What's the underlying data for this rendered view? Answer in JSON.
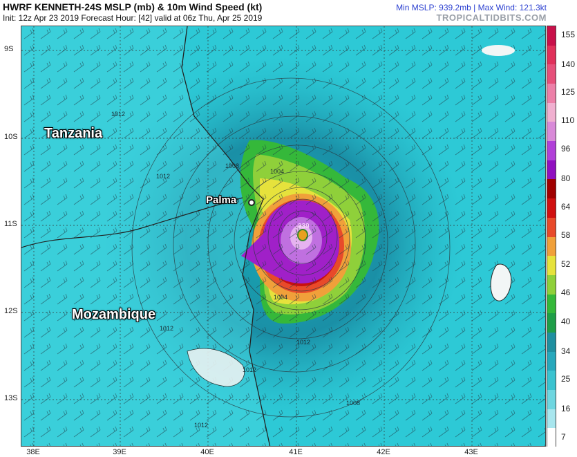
{
  "header": {
    "title": "HWRF KENNETH-24S MSLP (mb) & 10m Wind Speed (kt)",
    "subtitle": "Init: 12z Apr 23 2019   Forecast Hour: [42]   valid at 06z Thu, Apr 25 2019",
    "stats": "Min MSLP: 939.2mb | Max Wind: 121.3kt",
    "brand": "TROPICALTIDBITS.COM"
  },
  "map": {
    "lat_labels": [
      "9S",
      "10S",
      "11S",
      "12S",
      "13S"
    ],
    "lon_labels": [
      "38E",
      "39E",
      "40E",
      "41E",
      "42E",
      "43E"
    ],
    "countries": [
      "Tanzania",
      "Mozambique"
    ],
    "city": "Palma",
    "isobar_labels": [
      "1012",
      "1008",
      "1004",
      "1012",
      "1008",
      "1004",
      "1012",
      "1012",
      "1012",
      "1008",
      "1012"
    ],
    "center_pressure_label": "939"
  },
  "colorbar": {
    "labels": [
      "155",
      "140",
      "125",
      "110",
      "96",
      "80",
      "64",
      "58",
      "52",
      "46",
      "40",
      "34",
      "25",
      "16",
      "7"
    ],
    "colors": {
      "tropical_depression": "#1fb3c0",
      "tropical_storm": "#35b83a",
      "cat1": "#e84a2a",
      "major": "#a020c8",
      "coast": "#222222"
    }
  }
}
